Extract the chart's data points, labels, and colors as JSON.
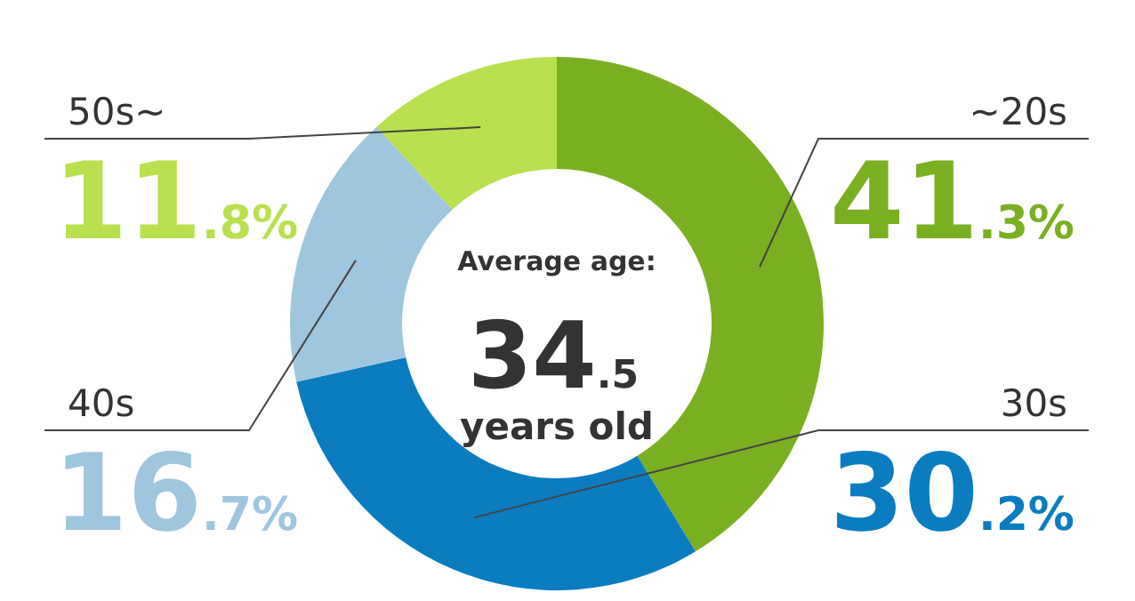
{
  "chart_data": {
    "type": "donut",
    "categories": [
      "~20s",
      "30s",
      "40s",
      "50s~"
    ],
    "values": [
      41.3,
      30.2,
      16.7,
      11.8
    ],
    "colors": [
      "#7aaf22",
      "#0a7cbf",
      "#9ec6df",
      "#b9e04f"
    ],
    "value_labels": [
      "41.3%",
      "30.2%",
      "16.7%",
      "11.8%"
    ],
    "annotations": [
      "Average age:",
      "34.5",
      "years old"
    ],
    "legend": false
  }
}
